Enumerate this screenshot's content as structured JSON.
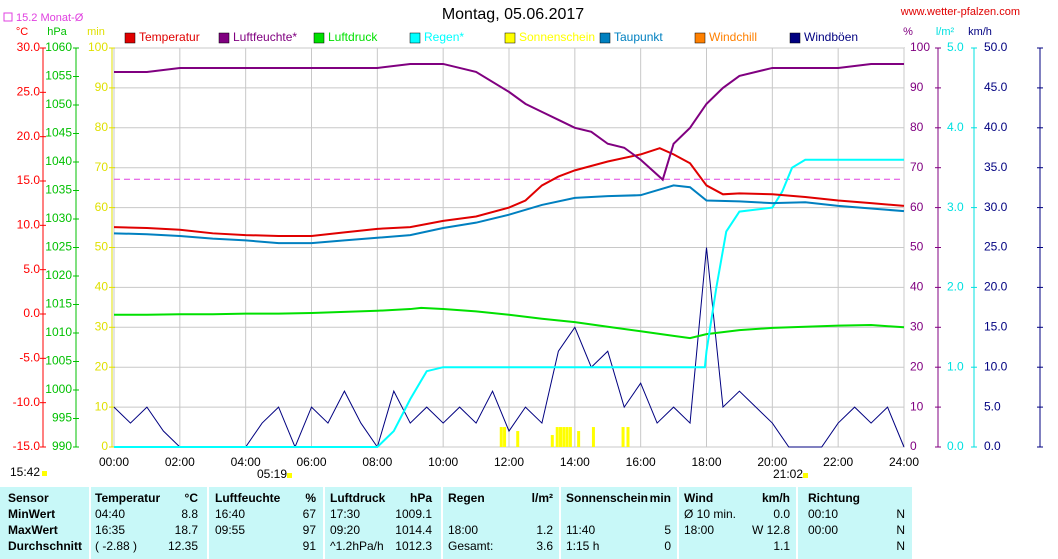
{
  "chart_data": {
    "type": "line",
    "title": "Montag, 05.06.2017",
    "site": "www.wetter-pfalzen.com",
    "monthly_mean": {
      "label": "15.2 Monat-Ø",
      "value": 15.2,
      "axis": "temp",
      "color": "#e040e0"
    },
    "time_labels": {
      "current": "15:42",
      "sunrise": "05:19",
      "sunset": "21:02"
    },
    "xlim": [
      0,
      24
    ],
    "xticks": [
      {
        "value": 0,
        "label": "00:00"
      },
      {
        "value": 2,
        "label": "02:00"
      },
      {
        "value": 4,
        "label": "04:00"
      },
      {
        "value": 6,
        "label": "06:00"
      },
      {
        "value": 8,
        "label": "08:00"
      },
      {
        "value": 10,
        "label": "10:00"
      },
      {
        "value": 12,
        "label": "12:00"
      },
      {
        "value": 14,
        "label": "14:00"
      },
      {
        "value": 16,
        "label": "16:00"
      },
      {
        "value": 18,
        "label": "18:00"
      },
      {
        "value": 20,
        "label": "20:00"
      },
      {
        "value": 22,
        "label": "22:00"
      },
      {
        "value": 24,
        "label": "24:00"
      }
    ],
    "grid": true,
    "axes": {
      "temp": {
        "label": "°C",
        "color": "#ff0000",
        "lim": [
          -15,
          30
        ],
        "ticks": [
          {
            "value": 30,
            "label": "30.0"
          },
          {
            "value": 25,
            "label": "25.0"
          },
          {
            "value": 20,
            "label": "20.0"
          },
          {
            "value": 15,
            "label": "15.0"
          },
          {
            "value": 10,
            "label": "10.0"
          },
          {
            "value": 5,
            "label": "5.0"
          },
          {
            "value": 0,
            "label": "0.0"
          },
          {
            "value": -5,
            "label": "-5.0"
          },
          {
            "value": -10,
            "label": "-10.0"
          },
          {
            "value": -15,
            "label": "-15.0"
          }
        ]
      },
      "hpa": {
        "label": "hPa",
        "color": "#00c000",
        "lim": [
          990,
          1060
        ],
        "ticks": [
          1060,
          1055,
          1050,
          1045,
          1040,
          1035,
          1030,
          1025,
          1020,
          1015,
          1010,
          1005,
          1000,
          995,
          990
        ]
      },
      "min": {
        "label": "min",
        "color": "#e0e000",
        "lim": [
          0,
          100
        ],
        "ticks": [
          100,
          90,
          80,
          70,
          60,
          50,
          40,
          30,
          20,
          10,
          0
        ]
      },
      "pct": {
        "label": "%",
        "color": "#800080",
        "lim": [
          0,
          100
        ],
        "ticks": [
          100,
          90,
          80,
          70,
          60,
          50,
          40,
          30,
          20,
          10,
          0
        ]
      },
      "rain": {
        "label": "l/m²",
        "color": "#00e0e0",
        "lim": [
          0,
          5
        ],
        "ticks": [
          {
            "value": 5,
            "label": "5.0"
          },
          {
            "value": 4,
            "label": "4.0"
          },
          {
            "value": 3,
            "label": "3.0"
          },
          {
            "value": 2,
            "label": "2.0"
          },
          {
            "value": 1,
            "label": "1.0"
          },
          {
            "value": 0,
            "label": "0.0"
          }
        ]
      },
      "wind": {
        "label": "km/h",
        "color": "#000080",
        "lim": [
          0,
          50
        ],
        "ticks": [
          {
            "value": 50,
            "label": "50.0"
          },
          {
            "value": 45,
            "label": "45.0"
          },
          {
            "value": 40,
            "label": "40.0"
          },
          {
            "value": 35,
            "label": "35.0"
          },
          {
            "value": 30,
            "label": "30.0"
          },
          {
            "value": 25,
            "label": "25.0"
          },
          {
            "value": 20,
            "label": "20.0"
          },
          {
            "value": 15,
            "label": "15.0"
          },
          {
            "value": 10,
            "label": "10.0"
          },
          {
            "value": 5,
            "label": "5.0"
          },
          {
            "value": 0,
            "label": "0.0"
          }
        ]
      }
    },
    "series": [
      {
        "name": "Temperatur",
        "color": "#e00000",
        "axis": "temp",
        "x": [
          0,
          1,
          2,
          3,
          4,
          5,
          6,
          7,
          8,
          9,
          10,
          11,
          12,
          12.5,
          13,
          13.5,
          14,
          15,
          16,
          16.58,
          17,
          17.5,
          18,
          18.5,
          19,
          20,
          21,
          22,
          23,
          24
        ],
        "values": [
          9.8,
          9.7,
          9.5,
          9.1,
          8.9,
          8.8,
          8.8,
          9.2,
          9.6,
          9.8,
          10.5,
          11.0,
          12.0,
          12.8,
          14.5,
          15.5,
          16.2,
          17.2,
          18.0,
          18.7,
          18.0,
          17.0,
          14.5,
          13.5,
          13.6,
          13.5,
          13.2,
          12.8,
          12.5,
          12.2
        ]
      },
      {
        "name": "Luftfeuchte*",
        "color": "#800080",
        "axis": "pct",
        "x": [
          0,
          1,
          2,
          3,
          4,
          5,
          6,
          7,
          8,
          9,
          10,
          11,
          12,
          12.5,
          13,
          13.5,
          14,
          14.5,
          15,
          15.5,
          16,
          16.67,
          17,
          17.5,
          18,
          18.5,
          19,
          20,
          21,
          22,
          23,
          24
        ],
        "values": [
          94,
          94,
          95,
          95,
          95,
          95,
          95,
          95,
          95,
          96,
          96,
          94,
          89,
          86,
          84,
          82,
          80,
          79,
          76,
          75,
          72,
          67,
          76,
          80,
          86,
          90,
          93,
          95,
          95,
          95,
          96,
          96
        ]
      },
      {
        "name": "Luftdruck",
        "color": "#00e000",
        "axis": "hpa",
        "x": [
          0,
          1,
          2,
          3,
          4,
          5,
          6,
          7,
          8,
          9,
          9.33,
          10,
          11,
          12,
          13,
          14,
          15,
          16,
          17,
          17.5,
          18,
          19,
          20,
          21,
          22,
          23,
          24
        ],
        "values": [
          1013.2,
          1013.2,
          1013.3,
          1013.3,
          1013.4,
          1013.4,
          1013.5,
          1013.7,
          1013.9,
          1014.2,
          1014.4,
          1014.2,
          1013.8,
          1013.2,
          1012.5,
          1011.9,
          1011.1,
          1010.3,
          1009.5,
          1009.1,
          1009.8,
          1010.5,
          1010.9,
          1011.1,
          1011.3,
          1011.4,
          1011.0
        ]
      },
      {
        "name": "Regen*",
        "color": "#00ffff",
        "axis": "rain",
        "x": [
          0,
          8,
          8.5,
          9,
          9.5,
          10,
          17.95,
          18,
          18.3,
          18.6,
          19,
          20,
          20.3,
          20.6,
          21,
          24
        ],
        "values": [
          0,
          0,
          0.2,
          0.6,
          0.95,
          1.0,
          1.0,
          1.2,
          2.0,
          2.7,
          2.95,
          3.0,
          3.2,
          3.5,
          3.6,
          3.6
        ]
      },
      {
        "name": "Sonnenschein",
        "color": "#ffff00",
        "axis": "min",
        "style": "bar",
        "x": [
          11.75,
          11.85,
          12.25,
          13.3,
          13.45,
          13.55,
          13.65,
          13.75,
          13.85,
          14.1,
          14.55,
          15.45,
          15.6
        ],
        "values": [
          5,
          5,
          4,
          3,
          5,
          5,
          5,
          5,
          5,
          4,
          5,
          5,
          5
        ]
      },
      {
        "name": "Taupunkt",
        "color": "#0080c0",
        "axis": "temp",
        "x": [
          0,
          1,
          2,
          3,
          4,
          5,
          6,
          7,
          8,
          9,
          10,
          11,
          12,
          13,
          14,
          15,
          16,
          17,
          17.5,
          18,
          19,
          20,
          21,
          22,
          23,
          24
        ],
        "values": [
          9.1,
          9.0,
          8.8,
          8.5,
          8.3,
          8.0,
          8.0,
          8.3,
          8.6,
          8.9,
          9.7,
          10.3,
          11.2,
          12.3,
          13.1,
          13.3,
          13.4,
          14.5,
          14.3,
          12.8,
          12.7,
          12.5,
          12.6,
          12.2,
          11.9,
          11.6
        ]
      },
      {
        "name": "Windchill",
        "color": "#ff8000",
        "axis": "temp",
        "x": [],
        "values": []
      },
      {
        "name": "Windböen",
        "color": "#000080",
        "axis": "wind",
        "x": [
          0,
          0.5,
          1,
          1.5,
          2,
          2.5,
          3,
          3.5,
          4,
          4.5,
          5,
          5.5,
          6,
          6.5,
          7,
          7.5,
          8,
          8.5,
          9,
          9.5,
          10,
          10.5,
          11,
          11.5,
          12,
          12.5,
          13,
          13.5,
          14,
          14.5,
          15,
          15.5,
          16,
          16.5,
          17,
          17.5,
          18,
          18.5,
          19,
          19.5,
          20,
          20.5,
          21,
          21.5,
          22,
          22.5,
          23,
          23.5,
          24
        ],
        "values": [
          5,
          3,
          5,
          2,
          0,
          0,
          0,
          0,
          0,
          3,
          5,
          0,
          5,
          3,
          7,
          3,
          0,
          7,
          3,
          5,
          3,
          5,
          3,
          7,
          2,
          5,
          3,
          12,
          15,
          10,
          12,
          5,
          8,
          3,
          5,
          3,
          25,
          5,
          7,
          5,
          3,
          0,
          0,
          0,
          3,
          5,
          3,
          5,
          0
        ]
      }
    ]
  },
  "table": {
    "groups": [
      {
        "header": {
          "left": "Sensor"
        },
        "rows": [
          {
            "left": "MinWert"
          },
          {
            "left": "MaxWert"
          },
          {
            "left": "Durchschnitt"
          }
        ]
      },
      {
        "header": {
          "left": "Temperatur",
          "right": "°C"
        },
        "rows": [
          {
            "left": "04:40",
            "right": "8.8"
          },
          {
            "left": "16:35",
            "right": "18.7"
          },
          {
            "left": "( -2.88 )",
            "right": "12.35"
          }
        ]
      },
      {
        "header": {
          "left": "Luftfeuchte",
          "right": "%"
        },
        "rows": [
          {
            "left": "16:40",
            "right": "67"
          },
          {
            "left": "09:55",
            "right": "97"
          },
          {
            "right": "91"
          }
        ]
      },
      {
        "header": {
          "left": "Luftdruck",
          "right": "hPa"
        },
        "rows": [
          {
            "left": "17:30",
            "right": "1009.1"
          },
          {
            "left": "09:20",
            "right": "1014.4"
          },
          {
            "left": "^1.2hPa/h",
            "right": "1012.3"
          }
        ]
      },
      {
        "header": {
          "left": "Regen",
          "right": "l/m²"
        },
        "rows": [
          {},
          {
            "left": "18:00",
            "right": "1.2"
          },
          {
            "left": "Gesamt:",
            "right": "3.6"
          }
        ]
      },
      {
        "header": {
          "left": "Sonnenschein",
          "right": "min"
        },
        "rows": [
          {},
          {
            "left": "11:40",
            "right": "5"
          },
          {
            "left": "1:15 h",
            "right": "0"
          }
        ]
      },
      {
        "header": {
          "left": "Wind",
          "right": "km/h"
        },
        "rows": [
          {
            "left": "Ø 10 min.",
            "right": "0.0"
          },
          {
            "left": "18:00",
            "right": "W 12.8"
          },
          {
            "right": "1.1"
          }
        ]
      },
      {
        "header": {
          "left": "Richtung"
        },
        "rows": [
          {
            "left": "00:10",
            "right": "N"
          },
          {
            "left": "00:00",
            "right": "N"
          },
          {
            "right": "N"
          }
        ]
      }
    ]
  }
}
